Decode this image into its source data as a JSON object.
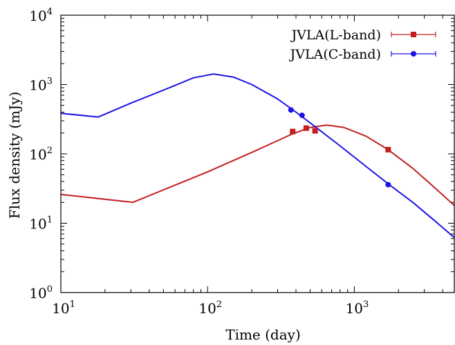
{
  "chart_data": {
    "type": "line",
    "title": "",
    "xlabel": "Time (day)",
    "ylabel": "Flux density (mJy)",
    "xscale": "log",
    "yscale": "log",
    "xlim": [
      10,
      4800
    ],
    "ylim": [
      1,
      10000
    ],
    "x_ticks": [
      10,
      100,
      1000
    ],
    "y_ticks": [
      1,
      10,
      100,
      1000,
      10000
    ],
    "grid": false,
    "legend_position": "top-right",
    "series": [
      {
        "name": "JVLA(L-band)",
        "color": "#c41e1e",
        "marker": "square",
        "points": [
          {
            "x": 380,
            "y": 210
          },
          {
            "x": 470,
            "y": 235
          },
          {
            "x": 540,
            "y": 215
          },
          {
            "x": 1700,
            "y": 115
          }
        ],
        "model_curve": [
          {
            "x": 10,
            "y": 26
          },
          {
            "x": 31,
            "y": 20
          },
          {
            "x": 100,
            "y": 55
          },
          {
            "x": 200,
            "y": 105
          },
          {
            "x": 380,
            "y": 195
          },
          {
            "x": 500,
            "y": 240
          },
          {
            "x": 650,
            "y": 260
          },
          {
            "x": 850,
            "y": 240
          },
          {
            "x": 1200,
            "y": 180
          },
          {
            "x": 1700,
            "y": 115
          },
          {
            "x": 2500,
            "y": 62
          },
          {
            "x": 3500,
            "y": 33
          },
          {
            "x": 4800,
            "y": 18
          }
        ]
      },
      {
        "name": "JVLA(C-band)",
        "color": "#1a12e6",
        "marker": "circle",
        "points": [
          {
            "x": 370,
            "y": 430
          },
          {
            "x": 440,
            "y": 360
          },
          {
            "x": 1700,
            "y": 36
          }
        ],
        "model_curve": [
          {
            "x": 10,
            "y": 385
          },
          {
            "x": 18,
            "y": 340
          },
          {
            "x": 30,
            "y": 540
          },
          {
            "x": 55,
            "y": 900
          },
          {
            "x": 80,
            "y": 1250
          },
          {
            "x": 110,
            "y": 1420
          },
          {
            "x": 150,
            "y": 1280
          },
          {
            "x": 200,
            "y": 1000
          },
          {
            "x": 300,
            "y": 620
          },
          {
            "x": 400,
            "y": 400
          },
          {
            "x": 550,
            "y": 240
          },
          {
            "x": 800,
            "y": 130
          },
          {
            "x": 1200,
            "y": 66
          },
          {
            "x": 1700,
            "y": 37
          },
          {
            "x": 2500,
            "y": 20
          },
          {
            "x": 3500,
            "y": 11
          },
          {
            "x": 4800,
            "y": 6.2
          }
        ]
      }
    ]
  }
}
